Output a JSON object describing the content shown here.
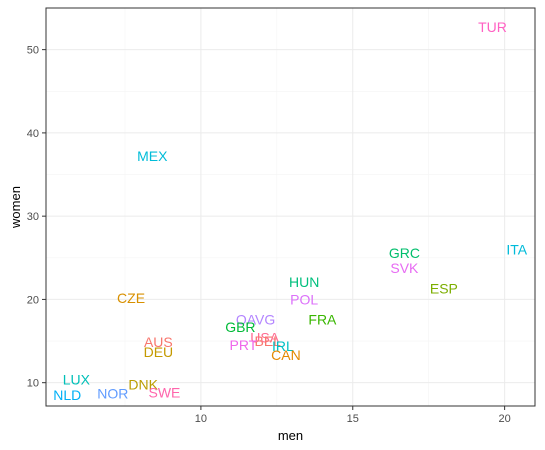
{
  "chart_data": {
    "type": "scatter",
    "title": "",
    "xlabel": "men",
    "ylabel": "women",
    "xlim": [
      4.9,
      21.0
    ],
    "ylim": [
      7.2,
      55.0
    ],
    "x_ticks": [
      10,
      15,
      20
    ],
    "y_ticks": [
      10,
      20,
      30,
      40,
      50
    ],
    "grid": true,
    "legend": "none",
    "points": [
      {
        "label": "TUR",
        "x": 19.6,
        "y": 52.7,
        "color": "#FF61C3"
      },
      {
        "label": "MEX",
        "x": 8.4,
        "y": 37.2,
        "color": "#00BCD8"
      },
      {
        "label": "ITA",
        "x": 20.4,
        "y": 26.0,
        "color": "#00BBDA"
      },
      {
        "label": "GRC",
        "x": 16.7,
        "y": 25.6,
        "color": "#00BE6C"
      },
      {
        "label": "SVK",
        "x": 16.7,
        "y": 23.8,
        "color": "#E76BF3"
      },
      {
        "label": "HUN",
        "x": 13.4,
        "y": 22.1,
        "color": "#00BF7D"
      },
      {
        "label": "ESP",
        "x": 18.0,
        "y": 21.3,
        "color": "#7CAE00"
      },
      {
        "label": "CZE",
        "x": 7.7,
        "y": 20.2,
        "color": "#D89000"
      },
      {
        "label": "POL",
        "x": 13.4,
        "y": 20.0,
        "color": "#DC71FA"
      },
      {
        "label": "FRA",
        "x": 14.0,
        "y": 17.6,
        "color": "#39B600"
      },
      {
        "label": "OAVG",
        "x": 11.8,
        "y": 17.6,
        "color": "#B385FF"
      },
      {
        "label": "GBR",
        "x": 11.3,
        "y": 16.7,
        "color": "#00BA38"
      },
      {
        "label": "USA",
        "x": 12.1,
        "y": 15.4,
        "color": "#FF6C91"
      },
      {
        "label": "BEL",
        "x": 12.2,
        "y": 15.0,
        "color": "#F8766D"
      },
      {
        "label": "AUS",
        "x": 8.6,
        "y": 14.9,
        "color": "#F8766D"
      },
      {
        "label": "PRT",
        "x": 11.4,
        "y": 14.5,
        "color": "#EF67EB"
      },
      {
        "label": "IRL",
        "x": 12.7,
        "y": 14.4,
        "color": "#00BFC4"
      },
      {
        "label": "DEU",
        "x": 8.6,
        "y": 13.7,
        "color": "#C49A00"
      },
      {
        "label": "CAN",
        "x": 12.8,
        "y": 13.3,
        "color": "#E38900"
      },
      {
        "label": "LUX",
        "x": 5.9,
        "y": 10.4,
        "color": "#00C0B8"
      },
      {
        "label": "DNK",
        "x": 8.1,
        "y": 9.8,
        "color": "#BB9D00"
      },
      {
        "label": "SWE",
        "x": 8.8,
        "y": 8.8,
        "color": "#FF65AC"
      },
      {
        "label": "NOR",
        "x": 7.1,
        "y": 8.7,
        "color": "#619CFF"
      },
      {
        "label": "NLD",
        "x": 5.6,
        "y": 8.5,
        "color": "#00B0F6"
      }
    ]
  }
}
